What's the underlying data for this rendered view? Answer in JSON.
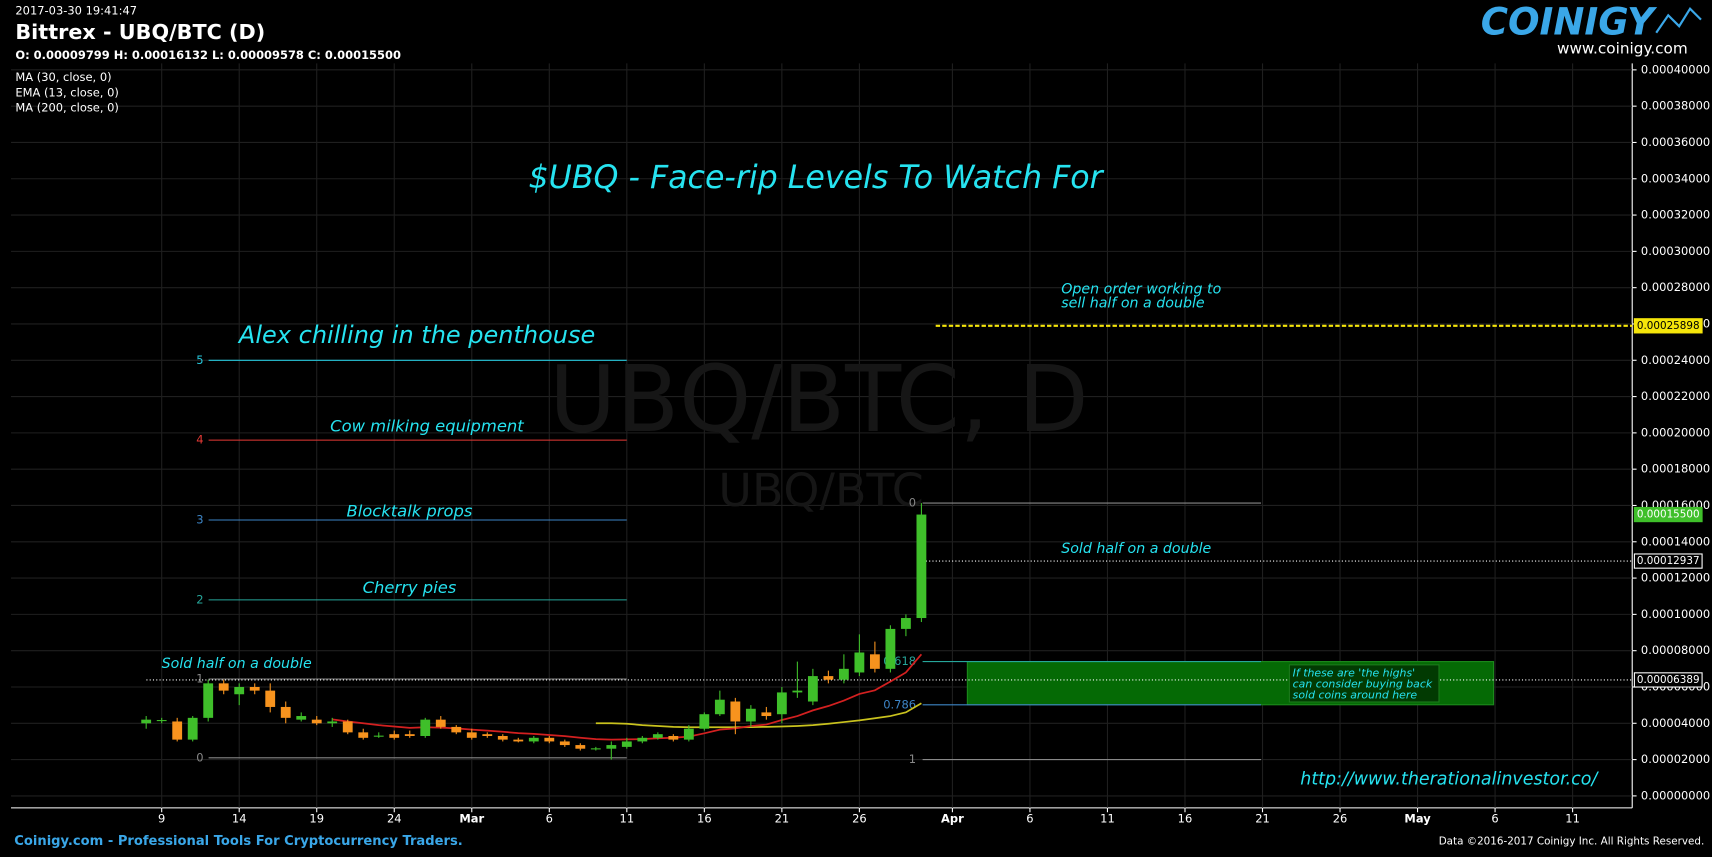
{
  "chart_data": {
    "type": "candlestick",
    "timestamp": "2017-03-30 19:41:47",
    "symbol": "Bittrex - UBQ/BTC (D)",
    "ohlc_text": "O: 0.00009799 H: 0.00016132 L: 0.00009578 C: 0.00015500",
    "title": "$UBQ - Face-rip Levels To Watch For",
    "watermark": [
      "UBQ/BTC, D",
      "UBQ/BTC"
    ],
    "logo": "COINIGY",
    "logo_url": "www.coinigy.com",
    "footer_left": "Coinigy.com - Professional Tools For Cryptocurrency Traders.",
    "footer_right": "Data ©2016-2017 Coinigy Inc. All Rights Reserved.",
    "link": "http://www.therationalinvestor.co/",
    "annotations": [
      "Alex chilling in the penthouse",
      "Cow milking equipment",
      "Blocktalk props",
      "Cherry pies",
      "Sold half on a double",
      "Open order working to",
      "sell half on a double",
      "Sold half on a double"
    ],
    "zone_note": [
      "If these are 'the highs'",
      "can consider buying back",
      "sold coins around here"
    ],
    "x": [
      "2017-02-08",
      "2017-02-09",
      "2017-02-10",
      "2017-02-11",
      "2017-02-12",
      "2017-02-13",
      "2017-02-14",
      "2017-02-15",
      "2017-02-16",
      "2017-02-17",
      "2017-02-18",
      "2017-02-19",
      "2017-02-20",
      "2017-02-21",
      "2017-02-22",
      "2017-02-23",
      "2017-02-24",
      "2017-02-25",
      "2017-02-26",
      "2017-02-27",
      "2017-02-28",
      "2017-03-01",
      "2017-03-02",
      "2017-03-03",
      "2017-03-04",
      "2017-03-05",
      "2017-03-06",
      "2017-03-07",
      "2017-03-08",
      "2017-03-09",
      "2017-03-10",
      "2017-03-11",
      "2017-03-12",
      "2017-03-13",
      "2017-03-14",
      "2017-03-15",
      "2017-03-16",
      "2017-03-17",
      "2017-03-18",
      "2017-03-19",
      "2017-03-20",
      "2017-03-21",
      "2017-03-22",
      "2017-03-23",
      "2017-03-24",
      "2017-03-25",
      "2017-03-26",
      "2017-03-27",
      "2017-03-28",
      "2017-03-29",
      "2017-03-30"
    ],
    "open": [
      4e-05,
      4.15e-05,
      4.1e-05,
      3.1e-05,
      4.3e-05,
      6.2e-05,
      5.6e-05,
      6e-05,
      5.8e-05,
      4.9e-05,
      4.2e-05,
      4.2e-05,
      4e-05,
      4.1e-05,
      3.5e-05,
      3.3e-05,
      3.4e-05,
      3.4e-05,
      3.3e-05,
      4.2e-05,
      3.8e-05,
      3.5e-05,
      3.4e-05,
      3.3e-05,
      3.1e-05,
      3e-05,
      3.2e-05,
      3e-05,
      2.8e-05,
      2.6e-05,
      2.6e-05,
      2.7e-05,
      3e-05,
      3.2e-05,
      3.3e-05,
      3.1e-05,
      3.7e-05,
      4.5e-05,
      5.2e-05,
      4.1e-05,
      4.6e-05,
      4.5e-05,
      5.7e-05,
      5.2e-05,
      6.6e-05,
      6.4e-05,
      6.8e-05,
      7.8e-05,
      7e-05,
      9.2e-05,
      9.799e-05
    ],
    "high": [
      4.4e-05,
      4.3e-05,
      4.3e-05,
      4.4e-05,
      6.4e-05,
      6.4e-05,
      6.2e-05,
      6.2e-05,
      6.2e-05,
      5.2e-05,
      4.6e-05,
      4.4e-05,
      4.3e-05,
      4.2e-05,
      3.7e-05,
      3.5e-05,
      3.6e-05,
      3.6e-05,
      4.3e-05,
      4.4e-05,
      3.9e-05,
      3.7e-05,
      3.5e-05,
      3.4e-05,
      3.2e-05,
      3.3e-05,
      3.3e-05,
      3.1e-05,
      2.9e-05,
      2.7e-05,
      3e-05,
      3.2e-05,
      3.3e-05,
      3.5e-05,
      3.4e-05,
      3.9e-05,
      4.6e-05,
      5.8e-05,
      5.4e-05,
      5e-05,
      4.9e-05,
      6e-05,
      7.4e-05,
      7e-05,
      6.9e-05,
      7.8e-05,
      8.9e-05,
      8.5e-05,
      9.4e-05,
      0.0001,
      0.00016132
    ],
    "low": [
      3.7e-05,
      4e-05,
      3e-05,
      3e-05,
      4.1e-05,
      5.6e-05,
      5e-05,
      5.6e-05,
      4.6e-05,
      4e-05,
      4.1e-05,
      3.9e-05,
      3.8e-05,
      3.4e-05,
      3.1e-05,
      3.2e-05,
      3.1e-05,
      3.2e-05,
      3.2e-05,
      3.7e-05,
      3.4e-05,
      3.1e-05,
      3.2e-05,
      3e-05,
      2.95e-05,
      2.9e-05,
      2.9e-05,
      2.7e-05,
      2.5e-05,
      2.5e-05,
      2e-05,
      2.6e-05,
      2.9e-05,
      3.1e-05,
      3e-05,
      3e-05,
      3.6e-05,
      4.4e-05,
      3.4e-05,
      3.8e-05,
      4.2e-05,
      4e-05,
      5.4e-05,
      5e-05,
      6.2e-05,
      6.2e-05,
      6.6e-05,
      6.8e-05,
      6.8e-05,
      8.8e-05,
      9.578e-05
    ],
    "close": [
      4.2e-05,
      4.18e-05,
      3.1e-05,
      4.3e-05,
      6.2e-05,
      5.8e-05,
      6e-05,
      5.8e-05,
      4.9e-05,
      4.3e-05,
      4.4e-05,
      4e-05,
      4.1e-05,
      3.5e-05,
      3.2e-05,
      3.32e-05,
      3.2e-05,
      3.3e-05,
      4.2e-05,
      3.8e-05,
      3.5e-05,
      3.2e-05,
      3.3e-05,
      3.1e-05,
      3e-05,
      3.2e-05,
      3e-05,
      2.8e-05,
      2.6e-05,
      2.62e-05,
      2.8e-05,
      3e-05,
      3.2e-05,
      3.4e-05,
      3.1e-05,
      3.7e-05,
      4.5e-05,
      5.3e-05,
      4.1e-05,
      4.8e-05,
      4.4e-05,
      5.7e-05,
      5.8e-05,
      6.6e-05,
      6.4e-05,
      7e-05,
      7.9e-05,
      7e-05,
      9.2e-05,
      9.8e-05,
      0.000155
    ],
    "up_color": "#3fbf2a",
    "down_color": "#f7931e",
    "series": [
      {
        "name": "MA (30, close, 0)",
        "color": "#c9c21e",
        "values": [
          null,
          null,
          null,
          null,
          null,
          null,
          null,
          null,
          null,
          null,
          null,
          null,
          null,
          null,
          null,
          null,
          null,
          null,
          null,
          null,
          null,
          null,
          null,
          null,
          null,
          null,
          null,
          null,
          null,
          4e-05,
          4e-05,
          3.98e-05,
          3.9e-05,
          3.85e-05,
          3.8e-05,
          3.78e-05,
          3.78e-05,
          3.78e-05,
          3.78e-05,
          3.79e-05,
          3.8e-05,
          3.82e-05,
          3.85e-05,
          3.9e-05,
          3.98e-05,
          4.07e-05,
          4.16e-05,
          4.28e-05,
          4.4e-05,
          4.6e-05,
          5.1e-05
        ]
      },
      {
        "name": "EMA (13, close, 0)",
        "color": "#d32020",
        "values": [
          null,
          null,
          null,
          null,
          null,
          null,
          null,
          null,
          null,
          null,
          null,
          null,
          4.22e-05,
          4.1e-05,
          4e-05,
          3.9e-05,
          3.82e-05,
          3.75e-05,
          3.78e-05,
          3.76e-05,
          3.72e-05,
          3.65e-05,
          3.6e-05,
          3.53e-05,
          3.46e-05,
          3.42e-05,
          3.36e-05,
          3.29e-05,
          3.2e-05,
          3.13e-05,
          3.1e-05,
          3.11e-05,
          3.13e-05,
          3.18e-05,
          3.2e-05,
          3.27e-05,
          3.45e-05,
          3.65e-05,
          3.72e-05,
          3.85e-05,
          3.93e-05,
          4.18e-05,
          4.4e-05,
          4.71e-05,
          4.95e-05,
          5.25e-05,
          5.62e-05,
          5.82e-05,
          6.3e-05,
          6.8e-05,
          7.8e-05
        ]
      },
      {
        "name": "MA (200, close, 0)",
        "color": "#2196f3",
        "values": [
          null,
          null,
          null,
          null,
          null,
          null,
          null,
          null,
          null,
          null,
          null,
          null,
          null,
          null,
          null,
          null,
          null,
          null,
          null,
          null,
          null,
          null,
          null,
          null,
          null,
          null,
          null,
          null,
          null,
          null,
          null,
          null,
          null,
          null,
          null,
          null,
          null,
          null,
          null,
          null,
          null,
          null,
          null,
          null,
          null,
          null,
          null,
          null,
          null,
          null,
          null
        ]
      }
    ],
    "xlim": [
      "2017-01-30",
      "2017-05-14"
    ],
    "xticks": [
      {
        "value": "2017-02-09",
        "label": "9"
      },
      {
        "value": "2017-02-14",
        "label": "14"
      },
      {
        "value": "2017-02-19",
        "label": "19"
      },
      {
        "value": "2017-02-24",
        "label": "24"
      },
      {
        "value": "2017-03-01",
        "label": "Mar"
      },
      {
        "value": "2017-03-06",
        "label": "6"
      },
      {
        "value": "2017-03-11",
        "label": "11"
      },
      {
        "value": "2017-03-16",
        "label": "16"
      },
      {
        "value": "2017-03-21",
        "label": "21"
      },
      {
        "value": "2017-03-26",
        "label": "26"
      },
      {
        "value": "2017-04-01",
        "label": "Apr"
      },
      {
        "value": "2017-04-06",
        "label": "6"
      },
      {
        "value": "2017-04-11",
        "label": "11"
      },
      {
        "value": "2017-04-16",
        "label": "16"
      },
      {
        "value": "2017-04-21",
        "label": "21"
      },
      {
        "value": "2017-04-26",
        "label": "26"
      },
      {
        "value": "2017-05-01",
        "label": "May"
      },
      {
        "value": "2017-05-06",
        "label": "6"
      },
      {
        "value": "2017-05-11",
        "label": "11"
      }
    ],
    "ylim": [
      -6.6e-06,
      0.0004036
    ],
    "yticks": [
      {
        "value": 0,
        "label": "0.00000000"
      },
      {
        "value": 2e-05,
        "label": "0.00002000"
      },
      {
        "value": 4e-05,
        "label": "0.00004000"
      },
      {
        "value": 6e-05,
        "label": "0.00006000"
      },
      {
        "value": 8e-05,
        "label": "0.00008000"
      },
      {
        "value": 0.0001,
        "label": "0.00010000"
      },
      {
        "value": 0.00012,
        "label": "0.00012000"
      },
      {
        "value": 0.00014,
        "label": "0.00014000"
      },
      {
        "value": 0.00016,
        "label": "0.00016000"
      },
      {
        "value": 0.00018,
        "label": "0.00018000"
      },
      {
        "value": 0.0002,
        "label": "0.00020000"
      },
      {
        "value": 0.00022,
        "label": "0.00022000"
      },
      {
        "value": 0.00024,
        "label": "0.00024000"
      },
      {
        "value": 0.00026,
        "label": "0.00026000"
      },
      {
        "value": 0.00028,
        "label": "0.00028000"
      },
      {
        "value": 0.0003,
        "label": "0.00030000"
      },
      {
        "value": 0.00032,
        "label": "0.00032000"
      },
      {
        "value": 0.00034,
        "label": "0.00034000"
      },
      {
        "value": 0.00036,
        "label": "0.00036000"
      },
      {
        "value": 0.00038,
        "label": "0.00038000"
      },
      {
        "value": 0.0004,
        "label": "0.00040000"
      }
    ],
    "grid": true,
    "levels": [
      {
        "label": "5",
        "value": 0.00024,
        "color": "#26c6da"
      },
      {
        "label": "4",
        "value": 0.000196,
        "color": "#e53935"
      },
      {
        "label": "3",
        "value": 0.000152,
        "color": "#3d85c6"
      },
      {
        "label": "2",
        "value": 0.000108,
        "color": "#26a69a"
      },
      {
        "label": "1",
        "value": 6.44e-05,
        "color": "#888888"
      },
      {
        "label": "0",
        "value": 2.1e-05,
        "color": "#888888"
      }
    ],
    "fib": [
      {
        "label": "0",
        "value": 0.00016132,
        "color": "#888888"
      },
      {
        "label": "0.618",
        "value": 7.4e-05,
        "color": "#26a69a"
      },
      {
        "label": "0.786",
        "value": 5.02e-05,
        "color": "#3d85c6"
      },
      {
        "label": "1",
        "value": 2e-05,
        "color": "#888888"
      }
    ],
    "zone": {
      "low": 5.02e-05,
      "high": 7.4e-05,
      "color": "#056a05"
    },
    "price_lines": [
      {
        "value": 0.00025898,
        "label": "0.00025898",
        "color": "#f5e50a"
      },
      {
        "value": 0.00012937,
        "label": "0.00012937",
        "color": "#ffffff"
      },
      {
        "value": 6.389e-05,
        "label": "0.00006389",
        "color": "#ffffff"
      }
    ],
    "last_price": {
      "value": 0.000155,
      "label": "0.00015500",
      "color": "#3fbf2a"
    }
  }
}
